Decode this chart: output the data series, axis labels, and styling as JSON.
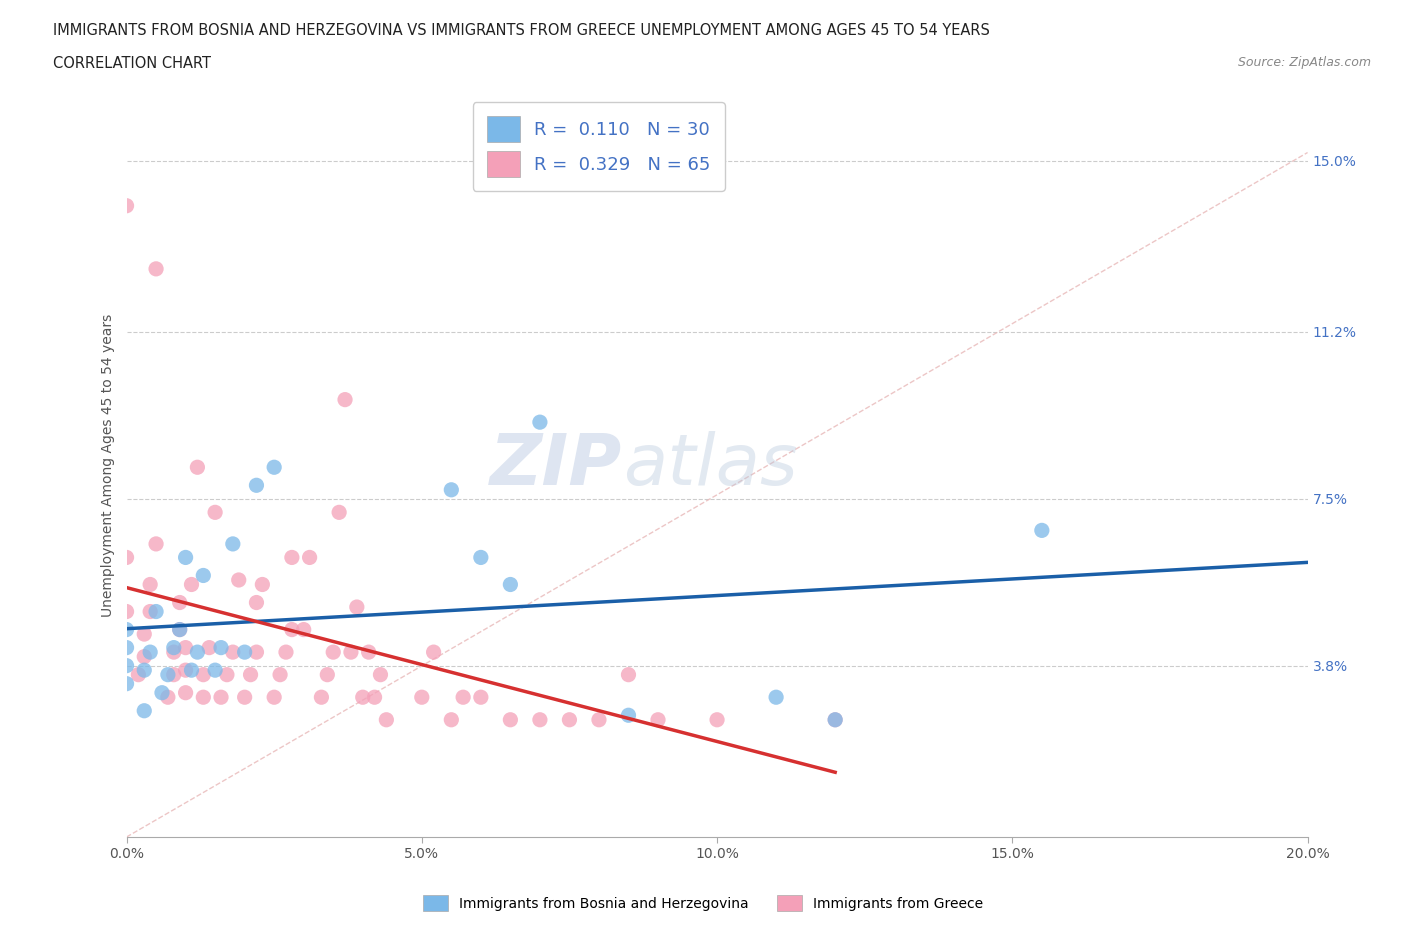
{
  "title_line1": "IMMIGRANTS FROM BOSNIA AND HERZEGOVINA VS IMMIGRANTS FROM GREECE UNEMPLOYMENT AMONG AGES 45 TO 54 YEARS",
  "title_line2": "CORRELATION CHART",
  "source": "Source: ZipAtlas.com",
  "ylabel": "Unemployment Among Ages 45 to 54 years",
  "xlim": [
    0.0,
    0.2
  ],
  "ylim": [
    0.0,
    0.165
  ],
  "xticks": [
    0.0,
    0.05,
    0.1,
    0.15,
    0.2
  ],
  "xticklabels": [
    "0.0%",
    "5.0%",
    "10.0%",
    "15.0%",
    "20.0%"
  ],
  "ytick_positions": [
    0.038,
    0.075,
    0.112,
    0.15
  ],
  "ytick_labels": [
    "3.8%",
    "7.5%",
    "11.2%",
    "15.0%"
  ],
  "color_bosnia": "#7bb8e8",
  "color_greece": "#f4a0b8",
  "line_color_bosnia": "#1a5fa8",
  "line_color_greece": "#d63030",
  "diagonal_color": "#e8b8b8",
  "R_bosnia": 0.11,
  "N_bosnia": 30,
  "R_greece": 0.329,
  "N_greece": 65,
  "legend_label_bosnia": "Immigrants from Bosnia and Herzegovina",
  "legend_label_greece": "Immigrants from Greece",
  "watermark_zip": "ZIP",
  "watermark_atlas": "atlas",
  "bosnia_x": [
    0.0,
    0.0,
    0.0,
    0.0,
    0.003,
    0.003,
    0.004,
    0.005,
    0.006,
    0.007,
    0.008,
    0.009,
    0.01,
    0.011,
    0.012,
    0.013,
    0.015,
    0.016,
    0.018,
    0.02,
    0.022,
    0.025,
    0.055,
    0.06,
    0.065,
    0.07,
    0.085,
    0.11,
    0.12,
    0.155
  ],
  "bosnia_y": [
    0.034,
    0.038,
    0.042,
    0.046,
    0.028,
    0.037,
    0.041,
    0.05,
    0.032,
    0.036,
    0.042,
    0.046,
    0.062,
    0.037,
    0.041,
    0.058,
    0.037,
    0.042,
    0.065,
    0.041,
    0.078,
    0.082,
    0.077,
    0.062,
    0.056,
    0.092,
    0.027,
    0.031,
    0.026,
    0.068
  ],
  "greece_x": [
    0.0,
    0.0,
    0.0,
    0.002,
    0.003,
    0.003,
    0.004,
    0.004,
    0.005,
    0.005,
    0.007,
    0.008,
    0.008,
    0.009,
    0.009,
    0.01,
    0.01,
    0.01,
    0.011,
    0.012,
    0.013,
    0.013,
    0.014,
    0.015,
    0.016,
    0.017,
    0.018,
    0.019,
    0.02,
    0.021,
    0.022,
    0.022,
    0.023,
    0.025,
    0.026,
    0.027,
    0.028,
    0.028,
    0.03,
    0.031,
    0.033,
    0.034,
    0.035,
    0.036,
    0.037,
    0.038,
    0.039,
    0.04,
    0.041,
    0.042,
    0.043,
    0.044,
    0.05,
    0.052,
    0.055,
    0.057,
    0.06,
    0.065,
    0.07,
    0.075,
    0.08,
    0.085,
    0.09,
    0.1,
    0.12
  ],
  "greece_y": [
    0.05,
    0.062,
    0.14,
    0.036,
    0.04,
    0.045,
    0.05,
    0.056,
    0.065,
    0.126,
    0.031,
    0.036,
    0.041,
    0.046,
    0.052,
    0.032,
    0.037,
    0.042,
    0.056,
    0.082,
    0.031,
    0.036,
    0.042,
    0.072,
    0.031,
    0.036,
    0.041,
    0.057,
    0.031,
    0.036,
    0.041,
    0.052,
    0.056,
    0.031,
    0.036,
    0.041,
    0.046,
    0.062,
    0.046,
    0.062,
    0.031,
    0.036,
    0.041,
    0.072,
    0.097,
    0.041,
    0.051,
    0.031,
    0.041,
    0.031,
    0.036,
    0.026,
    0.031,
    0.041,
    0.026,
    0.031,
    0.031,
    0.026,
    0.026,
    0.026,
    0.026,
    0.036,
    0.026,
    0.026,
    0.026
  ]
}
